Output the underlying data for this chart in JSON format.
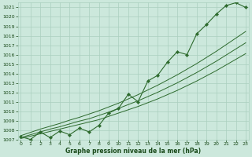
{
  "hours": [
    0,
    1,
    2,
    3,
    4,
    5,
    6,
    7,
    8,
    9,
    10,
    11,
    12,
    13,
    14,
    15,
    16,
    17,
    18,
    19,
    20,
    21,
    22,
    23
  ],
  "pressure": [
    1007.3,
    1007.0,
    1007.8,
    1007.2,
    1007.9,
    1007.5,
    1008.2,
    1007.8,
    1008.5,
    1009.8,
    1010.3,
    1011.8,
    1011.0,
    1013.2,
    1013.8,
    1015.2,
    1016.3,
    1016.0,
    1018.2,
    1019.2,
    1020.3,
    1021.2,
    1021.5,
    1021.0
  ],
  "trend_line1": [
    1007.1,
    1007.35,
    1007.6,
    1007.85,
    1008.1,
    1008.35,
    1008.6,
    1008.85,
    1009.1,
    1009.45,
    1009.8,
    1010.15,
    1010.5,
    1010.9,
    1011.3,
    1011.75,
    1012.2,
    1012.7,
    1013.2,
    1013.75,
    1014.3,
    1014.9,
    1015.5,
    1016.1
  ],
  "trend_line2": [
    1007.2,
    1007.5,
    1007.8,
    1008.1,
    1008.35,
    1008.65,
    1008.95,
    1009.2,
    1009.55,
    1009.9,
    1010.3,
    1010.7,
    1011.1,
    1011.55,
    1012.0,
    1012.5,
    1013.0,
    1013.55,
    1014.1,
    1014.7,
    1015.3,
    1015.95,
    1016.6,
    1017.25
  ],
  "trend_line3": [
    1007.4,
    1007.75,
    1008.1,
    1008.4,
    1008.7,
    1009.05,
    1009.35,
    1009.7,
    1010.05,
    1010.45,
    1010.85,
    1011.3,
    1011.75,
    1012.25,
    1012.75,
    1013.3,
    1013.85,
    1014.45,
    1015.05,
    1015.7,
    1016.35,
    1017.05,
    1017.75,
    1018.45
  ],
  "ylim": [
    1007,
    1021.5
  ],
  "yticks": [
    1007,
    1008,
    1009,
    1010,
    1011,
    1012,
    1013,
    1014,
    1015,
    1016,
    1017,
    1018,
    1019,
    1020,
    1021
  ],
  "xlim": [
    -0.3,
    23.3
  ],
  "xticks": [
    0,
    1,
    2,
    3,
    4,
    5,
    6,
    7,
    8,
    9,
    10,
    11,
    12,
    13,
    14,
    15,
    16,
    17,
    18,
    19,
    20,
    21,
    22,
    23
  ],
  "xlabel": "Graphe pression niveau de la mer (hPa)",
  "line_color": "#2d6a2d",
  "bg_color": "#cce8dc",
  "grid_color": "#aacfbf",
  "text_color": "#1a4a1a"
}
